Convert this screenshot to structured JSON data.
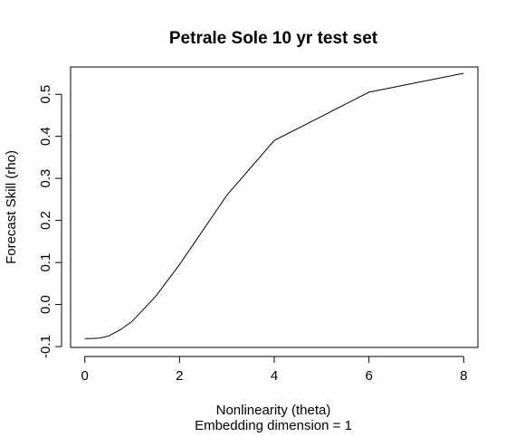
{
  "chart_data": {
    "type": "line",
    "title": "Petrale Sole 10 yr test set",
    "xlabel": "Nonlinearity (theta)",
    "subtitle": "Embedding dimension = 1",
    "ylabel": "Forecast Skill (rho)",
    "xlim": [
      -0.3,
      8.3
    ],
    "ylim": [
      -0.102,
      0.565
    ],
    "xticks": [
      0,
      2,
      4,
      6,
      8
    ],
    "xtick_labels": [
      "0",
      "2",
      "4",
      "6",
      "8"
    ],
    "yticks": [
      -0.1,
      0.0,
      0.1,
      0.2,
      0.3,
      0.4,
      0.5
    ],
    "ytick_labels": [
      "-0.1",
      "0.0",
      "0.1",
      "0.2",
      "0.3",
      "0.4",
      "0.5"
    ],
    "grid": false,
    "series": [
      {
        "x": [
          0,
          0.0001,
          0.0003,
          0.001,
          0.003,
          0.01,
          0.03,
          0.1,
          0.3,
          0.5,
          0.75,
          1,
          1.5,
          2,
          3,
          4,
          6,
          8
        ],
        "y": [
          -0.081,
          -0.081,
          -0.081,
          -0.081,
          -0.081,
          -0.081,
          -0.081,
          -0.081,
          -0.08,
          -0.075,
          -0.06,
          -0.04,
          0.02,
          0.095,
          0.26,
          0.39,
          0.505,
          0.55
        ],
        "color": "#000000"
      }
    ]
  }
}
